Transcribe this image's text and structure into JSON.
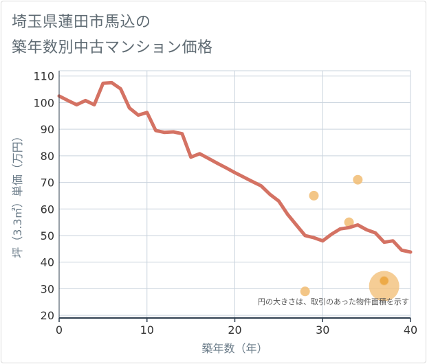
{
  "header": {
    "title_line1": "埼玉県蓮田市馬込の",
    "title_line2": "築年数別中古マンション価格"
  },
  "colors": {
    "line": "#d47263",
    "bubble": "#f2c07a",
    "bubble_dark": "#eaa030",
    "grid": "#c9d3dd",
    "axis": "#2f3f4f"
  },
  "chart_data": {
    "type": "line",
    "title": "埼玉県蓮田市馬込の築年数別中古マンション価格",
    "xlabel": "築年数（年）",
    "ylabel": "坪（3.3㎡）単価（万円）",
    "xlim": [
      0,
      40
    ],
    "ylim": [
      19,
      112
    ],
    "x_ticks": [
      0,
      10,
      20,
      30,
      40
    ],
    "y_ticks": [
      20,
      30,
      40,
      50,
      60,
      70,
      80,
      90,
      100,
      110
    ],
    "grid": true,
    "note": "円の大きさは、取引のあった物件面積を示す",
    "series": [
      {
        "name": "坪単価",
        "x": [
          0,
          1,
          2,
          3,
          4,
          5,
          6,
          7,
          8,
          9,
          10,
          11,
          12,
          13,
          14,
          15,
          16,
          17,
          18,
          19,
          20,
          21,
          22,
          23,
          24,
          25,
          26,
          27,
          28,
          29,
          30,
          31,
          32,
          33,
          34,
          35,
          36,
          37,
          38,
          39,
          40
        ],
        "values": [
          102.5,
          100.8,
          99.2,
          100.8,
          99.2,
          107.3,
          107.5,
          105.2,
          98.0,
          95.3,
          96.3,
          89.5,
          88.8,
          89.0,
          88.3,
          79.5,
          80.8,
          79.0,
          77.2,
          75.5,
          73.7,
          72.0,
          70.3,
          68.7,
          65.5,
          63.0,
          58.0,
          54.0,
          50.0,
          49.2,
          48.0,
          50.5,
          52.5,
          53.0,
          54.0,
          52.2,
          51.0,
          47.5,
          48.0,
          44.5,
          43.8
        ]
      }
    ],
    "bubbles": [
      {
        "x": 28,
        "y": 29,
        "size": "small"
      },
      {
        "x": 29,
        "y": 65,
        "size": "small"
      },
      {
        "x": 33,
        "y": 55,
        "size": "small"
      },
      {
        "x": 34,
        "y": 71,
        "size": "small"
      },
      {
        "x": 37,
        "y": 33,
        "size": "small"
      },
      {
        "x": 37,
        "y": 31,
        "size": "large"
      }
    ]
  }
}
